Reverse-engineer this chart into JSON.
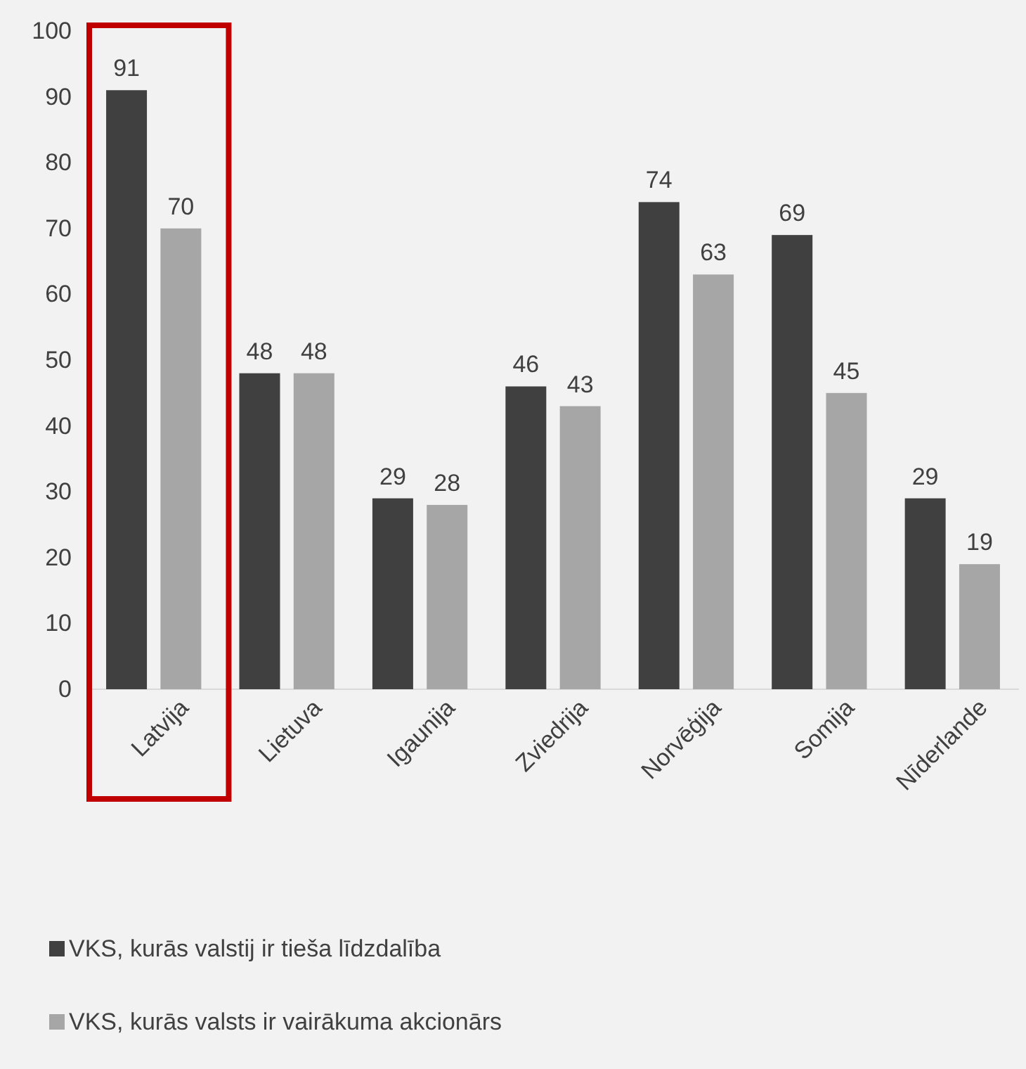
{
  "chart_data": {
    "type": "bar",
    "categories": [
      "Latvija",
      "Lietuva",
      "Igaunija",
      "Zviedrija",
      "Norvēģija",
      "Somija",
      "Nīderlande"
    ],
    "series": [
      {
        "name": "VKS, kurās valstij ir tieša līdzdalība",
        "color": "#404040",
        "values": [
          91,
          48,
          29,
          46,
          74,
          69,
          29
        ]
      },
      {
        "name": "VKS, kurās valsts ir vairākuma akcionārs",
        "color": "#a6a6a6",
        "values": [
          70,
          48,
          28,
          43,
          63,
          45,
          19
        ]
      }
    ],
    "bands": [
      {
        "axis": "x",
        "from": "Latvija",
        "to": "Latvija",
        "color": "#c00000"
      }
    ],
    "ylim": [
      0,
      100
    ],
    "yticks": [
      0,
      10,
      20,
      30,
      40,
      50,
      60,
      70,
      80,
      90,
      100
    ],
    "grid": false,
    "legend": "bottom",
    "data_labels": true
  }
}
